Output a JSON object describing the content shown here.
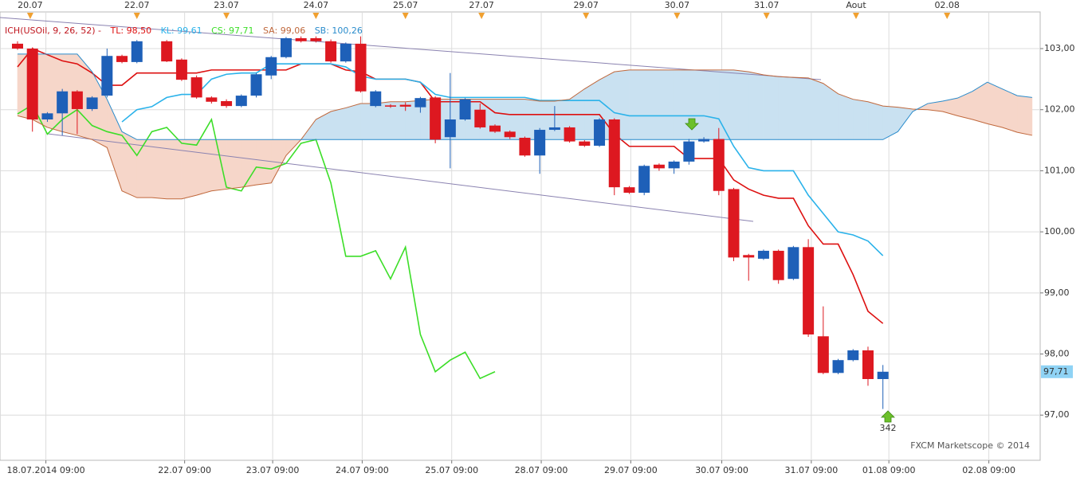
{
  "chart_data": {
    "type": "candlestick",
    "indicator": "ICH(USOil, 9, 26, 52) -",
    "indicator_color": "#c0161e",
    "up_color": "#1e60b8",
    "down_color": "#dd1820",
    "grid": true,
    "ylim": [
      96.26,
      103.6
    ],
    "yticks": [
      {
        "value": 97,
        "label": "97,00"
      },
      {
        "value": 98,
        "label": "98,00"
      },
      {
        "value": 99,
        "label": "99,00"
      },
      {
        "value": 100,
        "label": "100,00"
      },
      {
        "value": 101,
        "label": "101,00"
      },
      {
        "value": 102,
        "label": "102,00"
      },
      {
        "value": 103,
        "label": "103,00"
      }
    ],
    "xlim": [
      -1.175,
      68.54
    ],
    "xticks": [
      {
        "value": 1.9,
        "label": "18.07.2014 09:00"
      },
      {
        "value": 11.2,
        "label": "22.07 09:00"
      },
      {
        "value": 17.1,
        "label": "23.07 09:00"
      },
      {
        "value": 23.1,
        "label": "24.07 09:00"
      },
      {
        "value": 29.1,
        "label": "25.07 09:00"
      },
      {
        "value": 35.1,
        "label": "28.07 09:00"
      },
      {
        "value": 41.1,
        "label": "29.07 09:00"
      },
      {
        "value": 47.2,
        "label": "30.07 09:00"
      },
      {
        "value": 53.2,
        "label": "31.07 09:00"
      },
      {
        "value": 58.4,
        "label": "01.08 09:00"
      },
      {
        "value": 65.1,
        "label": "02.08 09:00"
      }
    ],
    "xticks_top": [
      {
        "value": 0.85,
        "label": "20.07"
      },
      {
        "value": 8,
        "label": "22.07"
      },
      {
        "value": 14,
        "label": "23.07"
      },
      {
        "value": 20,
        "label": "24.07"
      },
      {
        "value": 26,
        "label": "25.07"
      },
      {
        "value": 31.1,
        "label": "27.07"
      },
      {
        "value": 38.1,
        "label": "29.07"
      },
      {
        "value": 44.2,
        "label": "30.07"
      },
      {
        "value": 50.2,
        "label": "31.07"
      },
      {
        "value": 56.2,
        "label": "Aout"
      },
      {
        "value": 62.3,
        "label": "02.08"
      }
    ],
    "event_marker_color": "#f0a030",
    "candles": {
      "x": [
        0,
        1,
        2,
        3,
        4,
        5,
        6,
        7,
        8,
        10,
        11,
        12,
        13,
        14,
        15,
        16,
        17,
        18,
        19,
        20,
        21,
        22,
        23,
        24,
        25,
        26,
        27,
        28,
        29,
        30,
        31,
        32,
        33,
        34,
        35,
        36,
        37,
        38,
        39,
        40,
        41,
        42,
        43,
        44,
        45,
        46,
        47,
        48,
        49,
        50,
        51,
        52,
        53,
        54,
        55,
        56,
        57,
        58
      ],
      "open": [
        103.08,
        103.0,
        101.84,
        101.94,
        102.3,
        102.01,
        102.23,
        102.88,
        102.78,
        103.12,
        102.82,
        102.53,
        102.2,
        102.14,
        102.06,
        102.23,
        102.56,
        102.86,
        103.17,
        103.17,
        103.12,
        102.79,
        103.08,
        102.06,
        102.07,
        102.08,
        102.04,
        102.2,
        101.55,
        101.84,
        102.0,
        101.74,
        101.64,
        101.54,
        101.25,
        101.67,
        101.71,
        101.48,
        101.41,
        101.84,
        100.73,
        100.64,
        101.1,
        101.04,
        101.15,
        101.48,
        101.52,
        100.7,
        99.62,
        99.56,
        99.69,
        99.23,
        99.75,
        98.29,
        97.69,
        97.9,
        98.06,
        97.59
      ],
      "high": [
        103.12,
        103.02,
        101.96,
        102.34,
        102.32,
        102.22,
        103.0,
        102.9,
        103.14,
        103.14,
        102.84,
        102.56,
        102.22,
        102.17,
        102.25,
        102.6,
        102.88,
        103.19,
        103.2,
        103.2,
        103.15,
        103.1,
        103.2,
        102.32,
        102.09,
        102.12,
        102.21,
        102.22,
        102.6,
        102.19,
        102.1,
        101.76,
        101.66,
        101.56,
        101.7,
        102.06,
        101.73,
        101.5,
        101.86,
        101.86,
        100.75,
        101.1,
        101.12,
        101.17,
        101.52,
        101.55,
        101.7,
        100.72,
        99.64,
        99.71,
        99.71,
        99.77,
        99.88,
        98.78,
        97.92,
        98.08,
        98.12,
        97.82
      ],
      "low": [
        102.98,
        101.64,
        101.8,
        101.58,
        101.6,
        101.98,
        102.2,
        102.76,
        102.76,
        102.78,
        102.47,
        102.18,
        102.1,
        102.03,
        102.04,
        102.2,
        102.5,
        102.84,
        103.1,
        103.1,
        102.77,
        102.77,
        102.28,
        102.04,
        102.03,
        101.98,
        101.95,
        101.45,
        101.04,
        101.82,
        101.69,
        101.62,
        101.52,
        101.23,
        100.95,
        101.65,
        101.46,
        101.39,
        101.39,
        100.6,
        100.62,
        100.6,
        101.0,
        100.95,
        101.1,
        101.46,
        100.6,
        99.52,
        99.2,
        99.54,
        99.15,
        99.21,
        98.28,
        97.67,
        97.67,
        97.88,
        97.48,
        97.1
      ],
      "close": [
        103.0,
        101.84,
        101.94,
        102.3,
        102.01,
        102.2,
        102.88,
        102.78,
        103.12,
        102.79,
        102.49,
        102.2,
        102.13,
        102.06,
        102.23,
        102.58,
        102.86,
        103.17,
        103.12,
        103.12,
        102.79,
        103.08,
        102.3,
        102.3,
        102.05,
        102.05,
        102.19,
        101.51,
        101.84,
        102.17,
        101.71,
        101.64,
        101.55,
        101.25,
        101.67,
        101.71,
        101.48,
        101.41,
        101.84,
        100.73,
        100.64,
        101.08,
        101.04,
        101.15,
        101.48,
        101.52,
        100.67,
        99.58,
        99.58,
        99.69,
        99.21,
        99.75,
        98.32,
        97.69,
        97.9,
        98.06,
        97.59,
        97.71
      ]
    },
    "last_close_label": "97,71",
    "x": [
      0,
      1,
      2,
      3,
      4,
      5,
      6,
      7,
      8,
      9,
      10,
      11,
      12,
      13,
      14,
      15,
      16,
      17,
      18,
      19,
      20,
      21,
      22,
      23,
      24,
      25,
      26,
      27,
      28,
      29,
      30,
      31,
      32,
      33,
      34,
      35,
      36,
      37,
      38,
      39,
      40,
      41,
      42,
      43,
      44,
      45,
      46,
      47,
      48,
      49,
      50,
      51,
      52,
      53,
      54,
      55,
      56,
      57,
      58,
      59,
      60,
      61,
      62,
      63,
      64,
      65,
      66,
      67,
      68
    ],
    "series": [
      {
        "name": "TL: 98,50",
        "color": "#dd1010",
        "values": [
          102.7,
          103.0,
          102.9,
          102.8,
          102.75,
          102.6,
          102.4,
          102.4,
          102.6,
          102.6,
          102.6,
          102.6,
          102.6,
          102.65,
          102.65,
          102.65,
          102.65,
          102.65,
          102.65,
          102.75,
          102.75,
          102.75,
          102.65,
          102.62,
          102.5,
          102.5,
          102.5,
          102.45,
          102.13,
          102.13,
          102.13,
          102.13,
          101.95,
          101.92,
          101.92,
          101.92,
          101.92,
          101.92,
          101.92,
          101.92,
          101.6,
          101.4,
          101.4,
          101.4,
          101.4,
          101.2,
          101.2,
          101.2,
          100.85,
          100.7,
          100.6,
          100.55,
          100.55,
          100.1,
          99.8,
          99.8,
          99.3,
          98.7,
          98.5,
          null,
          null,
          null,
          null,
          null,
          null,
          null,
          null,
          null,
          null
        ]
      },
      {
        "name": "KL: 99,61",
        "color": "#2ab2ea",
        "values": [
          null,
          null,
          null,
          null,
          null,
          null,
          null,
          101.8,
          102.0,
          102.05,
          102.2,
          102.25,
          102.25,
          102.5,
          102.58,
          102.6,
          102.6,
          102.75,
          102.75,
          102.75,
          102.75,
          102.75,
          102.7,
          102.55,
          102.5,
          102.5,
          102.5,
          102.45,
          102.25,
          102.2,
          102.2,
          102.2,
          102.2,
          102.2,
          102.2,
          102.15,
          102.15,
          102.15,
          102.15,
          102.15,
          101.95,
          101.9,
          101.9,
          101.9,
          101.9,
          101.9,
          101.9,
          101.85,
          101.4,
          101.05,
          101.0,
          101.0,
          101.0,
          100.6,
          100.3,
          100.0,
          99.95,
          99.85,
          99.61,
          null,
          null,
          null,
          null,
          null,
          null,
          null,
          null,
          null,
          null
        ]
      },
      {
        "name": "CS: 97,71",
        "color": "#3cde28",
        "values": [
          101.93,
          102.08,
          101.6,
          101.84,
          102.0,
          101.74,
          101.64,
          101.58,
          101.25,
          101.64,
          101.71,
          101.45,
          101.42,
          101.84,
          100.73,
          100.67,
          101.06,
          101.03,
          101.12,
          101.45,
          101.51,
          100.8,
          99.6,
          99.6,
          99.69,
          99.23,
          99.75,
          98.32,
          97.71,
          97.9,
          98.03,
          97.6,
          97.71,
          null,
          null,
          null,
          null,
          null,
          null,
          null,
          null,
          null,
          null,
          null,
          null,
          null,
          null,
          null,
          null,
          null,
          null,
          null,
          null,
          null,
          null,
          null,
          null,
          null,
          null,
          null,
          null,
          null,
          null,
          null,
          null,
          null,
          null,
          null,
          null
        ]
      },
      {
        "name": "SA: 99,06",
        "color": "#c0683c",
        "values": [
          101.9,
          101.84,
          101.71,
          101.64,
          101.58,
          101.51,
          101.38,
          100.67,
          100.56,
          100.56,
          100.54,
          100.54,
          100.6,
          100.67,
          100.7,
          100.73,
          100.77,
          100.8,
          101.25,
          101.51,
          101.84,
          101.97,
          102.03,
          102.1,
          102.1,
          102.13,
          102.13,
          102.15,
          102.17,
          102.17,
          102.17,
          102.17,
          102.17,
          102.17,
          102.17,
          102.14,
          102.14,
          102.17,
          102.34,
          102.49,
          102.62,
          102.65,
          102.65,
          102.65,
          102.65,
          102.65,
          102.65,
          102.65,
          102.65,
          102.62,
          102.57,
          102.54,
          102.53,
          102.52,
          102.43,
          102.26,
          102.17,
          102.13,
          102.06,
          102.04,
          102.01,
          102.0,
          101.97,
          101.9,
          101.84,
          101.77,
          101.71,
          101.63,
          101.58
        ]
      },
      {
        "name": "SB: 100,26",
        "color": "#2a8ccc",
        "values": [
          102.91,
          102.91,
          102.91,
          102.91,
          102.91,
          102.62,
          102.17,
          101.64,
          101.51,
          101.51,
          101.51,
          101.51,
          101.51,
          101.51,
          101.51,
          101.51,
          101.51,
          101.51,
          101.51,
          101.51,
          101.51,
          101.51,
          101.51,
          101.51,
          101.51,
          101.51,
          101.51,
          101.51,
          101.51,
          101.51,
          101.51,
          101.51,
          101.51,
          101.51,
          101.51,
          101.51,
          101.51,
          101.51,
          101.51,
          101.51,
          101.51,
          101.51,
          101.51,
          101.51,
          101.51,
          101.51,
          101.51,
          101.51,
          101.51,
          101.51,
          101.51,
          101.51,
          101.51,
          101.51,
          101.51,
          101.51,
          101.51,
          101.51,
          101.51,
          101.64,
          101.97,
          102.1,
          102.14,
          102.19,
          102.3,
          102.45,
          102.34,
          102.23,
          102.2
        ]
      }
    ],
    "cloud_colors": {
      "bullish": "#c9e1f1",
      "bearish": "#f6d6c9"
    },
    "annotation": "342",
    "watermark": "FXCM Marketscope © 2014"
  }
}
